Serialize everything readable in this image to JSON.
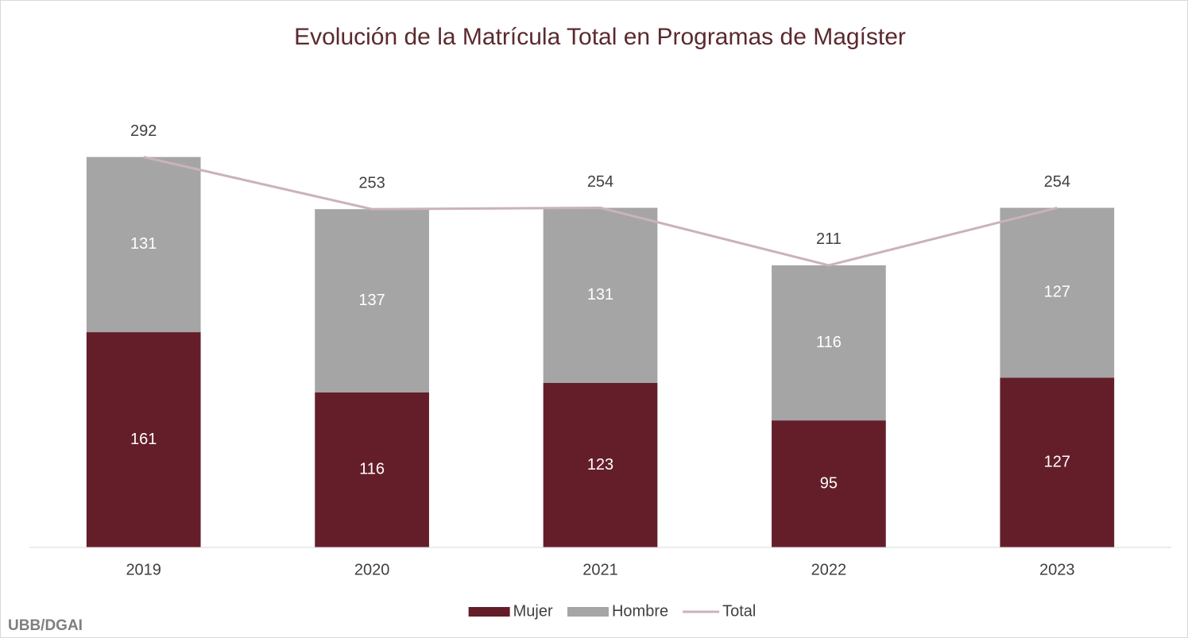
{
  "chart_data": {
    "type": "bar",
    "stacked": true,
    "title": "Evolución de la Matrícula Total en Programas de Magíster",
    "categories": [
      "2019",
      "2020",
      "2021",
      "2022",
      "2023"
    ],
    "series": [
      {
        "name": "Mujer",
        "type": "bar",
        "color": "#641e2a",
        "values": [
          161,
          116,
          123,
          95,
          127
        ]
      },
      {
        "name": "Hombre",
        "type": "bar",
        "color": "#a5a5a5",
        "values": [
          131,
          137,
          131,
          116,
          127
        ]
      },
      {
        "name": "Total",
        "type": "line",
        "color": "#c9b3b9",
        "values": [
          292,
          253,
          254,
          211,
          254
        ]
      }
    ],
    "ylim": [
      0,
      350
    ],
    "legend": "bottom",
    "footer": "UBB/DGAI"
  }
}
